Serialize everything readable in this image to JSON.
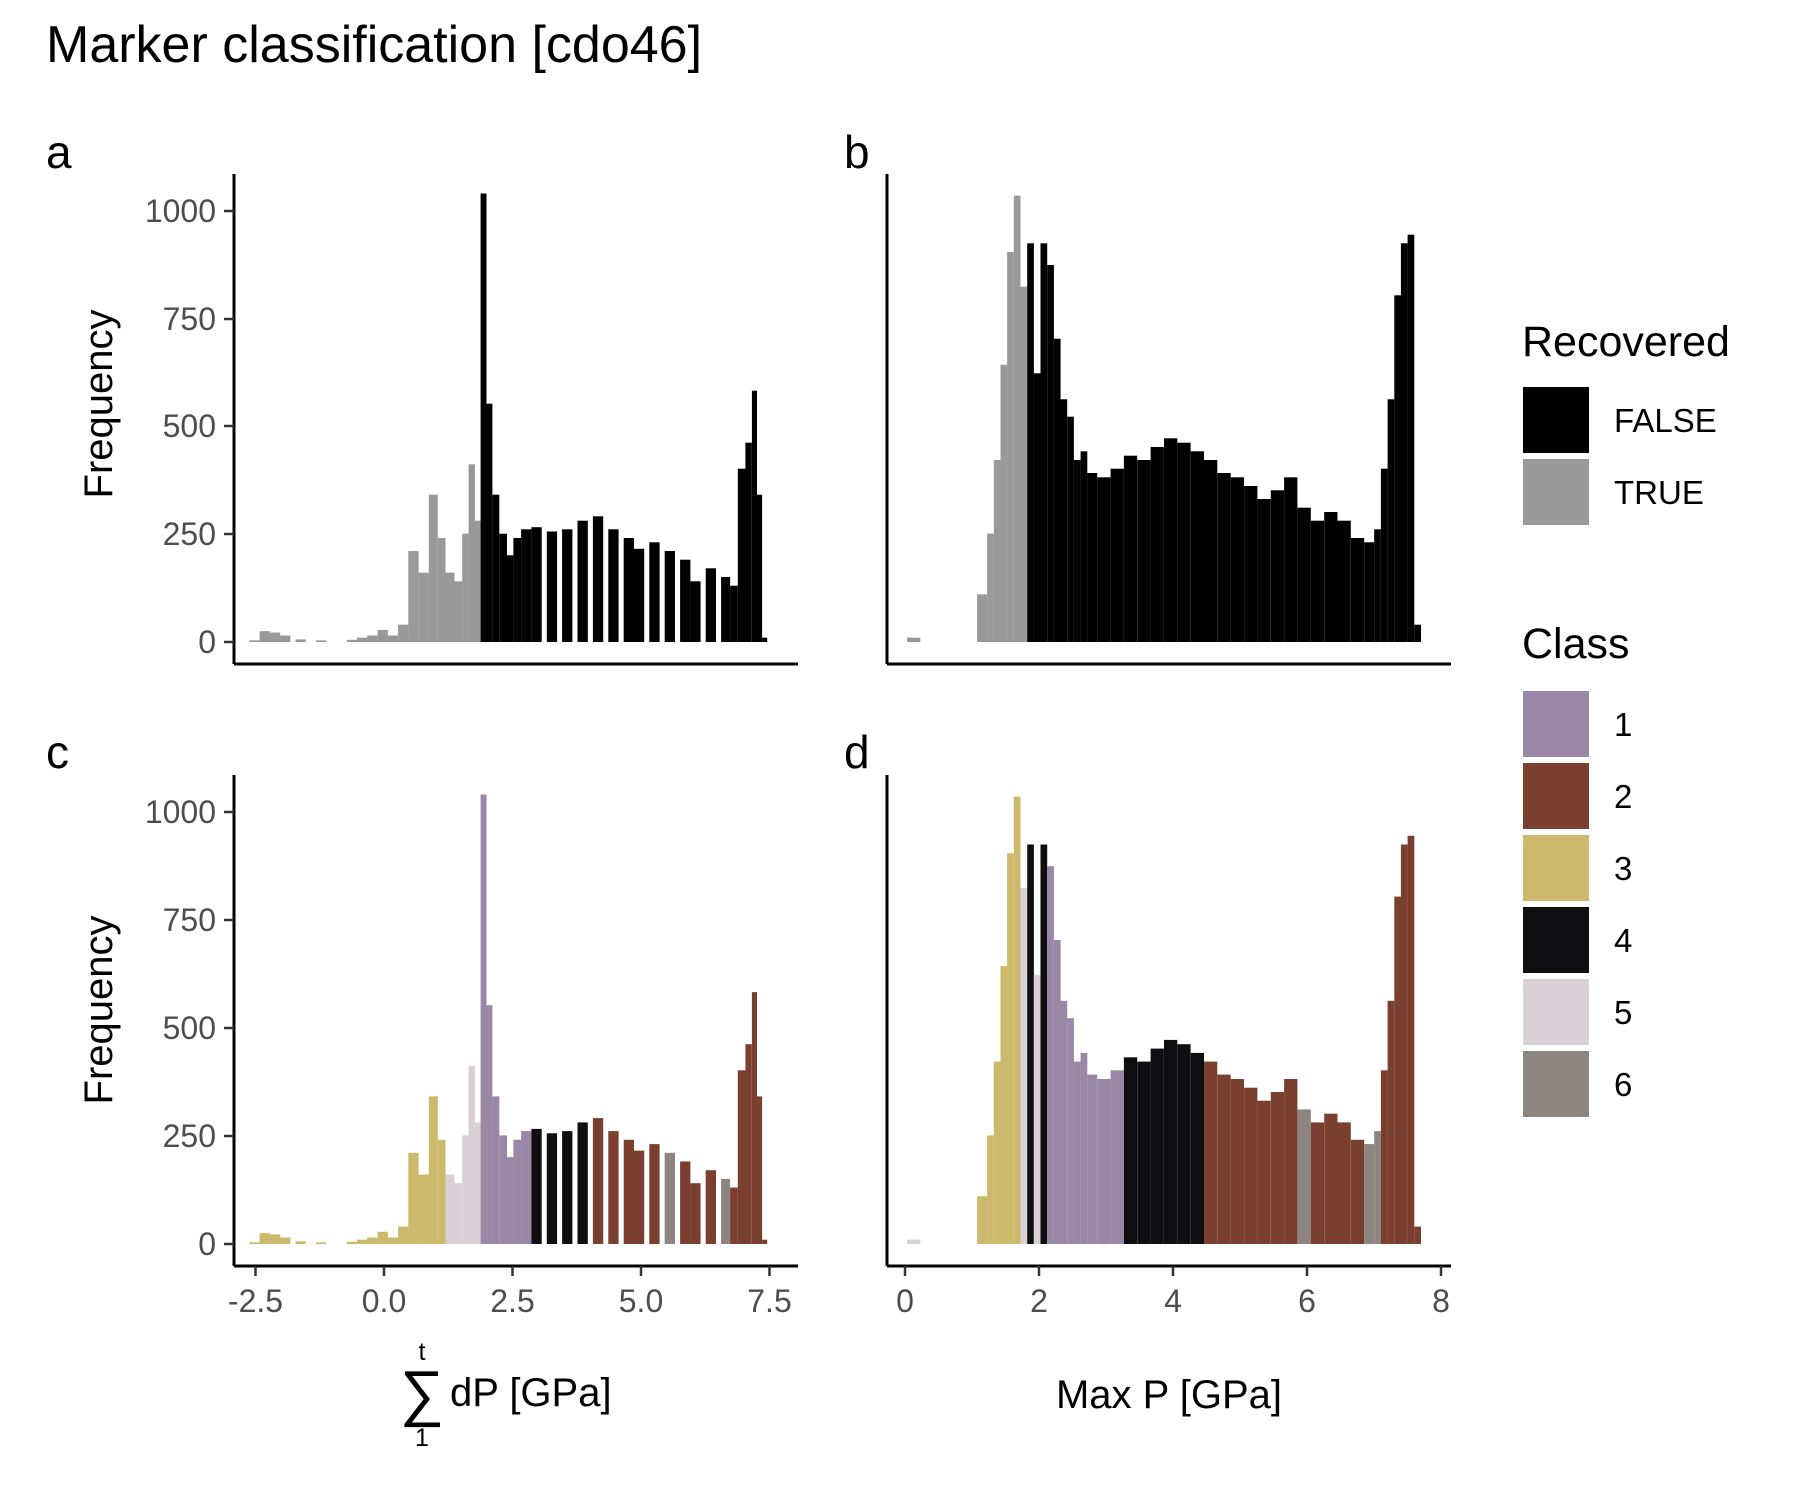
{
  "title": "Marker classification [cdo46]",
  "panels": {
    "a": "a",
    "b": "b",
    "c": "c",
    "d": "d"
  },
  "axes": {
    "ylabel": "Frequency",
    "xlabel_left": "dP [GPa]",
    "xlabel_left_sum_upper": "t",
    "xlabel_left_sum_lower": "1",
    "xlabel_right": "Max P [GPa]",
    "y_ticks": [
      "0",
      "250",
      "500",
      "750",
      "1000"
    ],
    "x_ticks_left": [
      "-2.5",
      "0.0",
      "2.5",
      "5.0",
      "7.5"
    ],
    "x_ticks_right": [
      "0",
      "2",
      "4",
      "6",
      "8"
    ]
  },
  "legend": {
    "recovered_title": "Recovered",
    "recovered": [
      {
        "label": "FALSE",
        "color": "#000000"
      },
      {
        "label": "TRUE",
        "color": "#999999"
      }
    ],
    "class_title": "Class",
    "classes": [
      {
        "label": "1",
        "color": "#9A87A6"
      },
      {
        "label": "2",
        "color": "#7B3F2F"
      },
      {
        "label": "3",
        "color": "#CDB96C"
      },
      {
        "label": "4",
        "color": "#0F0E10"
      },
      {
        "label": "5",
        "color": "#D8D0D4"
      },
      {
        "label": "6",
        "color": "#8C8580"
      }
    ]
  },
  "chart_data": [
    {
      "panel": "a",
      "type": "histogram",
      "stacked": true,
      "fill_by": "Recovered",
      "xlabel": "dP [GPa]",
      "ylabel": "Frequency",
      "xlim": [
        -2.9,
        8.1
      ],
      "ylim": [
        0,
        1080
      ],
      "points": [
        [
          -2.5,
          4,
          "TRUE"
        ],
        [
          -2.3,
          25,
          "TRUE"
        ],
        [
          -2.1,
          22,
          "TRUE"
        ],
        [
          -1.9,
          15,
          "TRUE"
        ],
        [
          -1.6,
          6,
          "TRUE"
        ],
        [
          -1.2,
          4,
          "TRUE"
        ],
        [
          -0.6,
          5,
          "TRUE"
        ],
        [
          -0.4,
          10,
          "TRUE"
        ],
        [
          -0.2,
          15,
          "TRUE"
        ],
        [
          0.0,
          28,
          "TRUE"
        ],
        [
          0.2,
          15,
          "TRUE"
        ],
        [
          0.4,
          40,
          "TRUE"
        ],
        [
          0.6,
          210,
          "TRUE"
        ],
        [
          0.8,
          160,
          "TRUE"
        ],
        [
          1.0,
          340,
          "TRUE"
        ],
        [
          1.15,
          240,
          "TRUE"
        ],
        [
          1.3,
          160,
          "TRUE"
        ],
        [
          1.5,
          140,
          "TRUE"
        ],
        [
          1.6,
          250,
          "TRUE"
        ],
        [
          1.75,
          410,
          "TRUE"
        ],
        [
          1.85,
          280,
          "TRUE"
        ],
        [
          1.97,
          1035,
          "FALSE"
        ],
        [
          2.08,
          550,
          "FALSE"
        ],
        [
          2.2,
          340,
          "FALSE"
        ],
        [
          2.35,
          250,
          "FALSE"
        ],
        [
          2.5,
          200,
          "FALSE"
        ],
        [
          2.6,
          240,
          "FALSE"
        ],
        [
          2.8,
          260,
          "FALSE"
        ],
        [
          3.0,
          265,
          "FALSE"
        ],
        [
          3.3,
          255,
          "FALSE"
        ],
        [
          3.6,
          260,
          "FALSE"
        ],
        [
          3.9,
          280,
          "FALSE"
        ],
        [
          4.2,
          290,
          "FALSE"
        ],
        [
          4.5,
          260,
          "FALSE"
        ],
        [
          4.8,
          240,
          "FALSE"
        ],
        [
          5.0,
          215,
          "FALSE"
        ],
        [
          5.3,
          230,
          "FALSE"
        ],
        [
          5.6,
          210,
          "FALSE"
        ],
        [
          5.9,
          190,
          "FALSE"
        ],
        [
          6.1,
          140,
          "FALSE"
        ],
        [
          6.4,
          170,
          "FALSE"
        ],
        [
          6.7,
          150,
          "FALSE"
        ],
        [
          6.85,
          130,
          "FALSE"
        ],
        [
          7.0,
          400,
          "FALSE"
        ],
        [
          7.15,
          460,
          "FALSE"
        ],
        [
          7.25,
          580,
          "FALSE"
        ],
        [
          7.35,
          340,
          "FALSE"
        ],
        [
          7.45,
          10,
          "FALSE"
        ]
      ]
    },
    {
      "panel": "b",
      "type": "histogram",
      "stacked": true,
      "fill_by": "Recovered",
      "xlabel": "Max P [GPa]",
      "ylabel": "Frequency",
      "xlim": [
        -0.25,
        8.2
      ],
      "ylim": [
        0,
        1080
      ],
      "points": [
        [
          0.15,
          10,
          "TRUE"
        ],
        [
          1.2,
          110,
          "TRUE"
        ],
        [
          1.3,
          250,
          "TRUE"
        ],
        [
          1.4,
          420,
          "TRUE"
        ],
        [
          1.5,
          640,
          "TRUE"
        ],
        [
          1.6,
          900,
          "TRUE"
        ],
        [
          1.7,
          1030,
          "TRUE"
        ],
        [
          1.8,
          820,
          "TRUE"
        ],
        [
          1.9,
          920,
          "FALSE"
        ],
        [
          2.0,
          620,
          "FALSE"
        ],
        [
          2.1,
          920,
          "FALSE"
        ],
        [
          2.2,
          870,
          "FALSE"
        ],
        [
          2.3,
          700,
          "FALSE"
        ],
        [
          2.4,
          560,
          "FALSE"
        ],
        [
          2.5,
          520,
          "FALSE"
        ],
        [
          2.6,
          420,
          "FALSE"
        ],
        [
          2.7,
          440,
          "FALSE"
        ],
        [
          2.8,
          390,
          "FALSE"
        ],
        [
          3.0,
          380,
          "FALSE"
        ],
        [
          3.2,
          400,
          "FALSE"
        ],
        [
          3.4,
          430,
          "FALSE"
        ],
        [
          3.6,
          420,
          "FALSE"
        ],
        [
          3.8,
          450,
          "FALSE"
        ],
        [
          4.0,
          470,
          "FALSE"
        ],
        [
          4.2,
          460,
          "FALSE"
        ],
        [
          4.4,
          440,
          "FALSE"
        ],
        [
          4.6,
          420,
          "FALSE"
        ],
        [
          4.8,
          390,
          "FALSE"
        ],
        [
          5.0,
          380,
          "FALSE"
        ],
        [
          5.2,
          360,
          "FALSE"
        ],
        [
          5.4,
          330,
          "FALSE"
        ],
        [
          5.6,
          350,
          "FALSE"
        ],
        [
          5.8,
          380,
          "FALSE"
        ],
        [
          6.0,
          310,
          "FALSE"
        ],
        [
          6.2,
          280,
          "FALSE"
        ],
        [
          6.4,
          300,
          "FALSE"
        ],
        [
          6.6,
          280,
          "FALSE"
        ],
        [
          6.8,
          240,
          "FALSE"
        ],
        [
          7.0,
          230,
          "FALSE"
        ],
        [
          7.1,
          260,
          "FALSE"
        ],
        [
          7.2,
          400,
          "FALSE"
        ],
        [
          7.3,
          560,
          "FALSE"
        ],
        [
          7.4,
          800,
          "FALSE"
        ],
        [
          7.5,
          920,
          "FALSE"
        ],
        [
          7.6,
          940,
          "FALSE"
        ],
        [
          7.7,
          40,
          "FALSE"
        ]
      ]
    },
    {
      "panel": "c",
      "type": "histogram",
      "stacked": true,
      "fill_by": "Class",
      "xlabel": "dP [GPa]",
      "ylabel": "Frequency",
      "xlim": [
        -2.9,
        8.1
      ],
      "ylim": [
        0,
        1080
      ],
      "points": [
        [
          -2.5,
          4,
          "3"
        ],
        [
          -2.3,
          25,
          "3"
        ],
        [
          -2.1,
          22,
          "3"
        ],
        [
          -1.9,
          15,
          "3"
        ],
        [
          -1.6,
          6,
          "3"
        ],
        [
          -1.2,
          4,
          "3"
        ],
        [
          -0.6,
          5,
          "3"
        ],
        [
          -0.4,
          10,
          "3"
        ],
        [
          -0.2,
          15,
          "3"
        ],
        [
          0.0,
          28,
          "3"
        ],
        [
          0.2,
          15,
          "3"
        ],
        [
          0.4,
          40,
          "3"
        ],
        [
          0.6,
          210,
          "3"
        ],
        [
          0.8,
          160,
          "3"
        ],
        [
          1.0,
          340,
          "3"
        ],
        [
          1.15,
          240,
          "3"
        ],
        [
          1.3,
          160,
          "5"
        ],
        [
          1.5,
          140,
          "5"
        ],
        [
          1.6,
          250,
          "5"
        ],
        [
          1.75,
          410,
          "5"
        ],
        [
          1.85,
          280,
          "5"
        ],
        [
          1.97,
          1035,
          "1"
        ],
        [
          2.08,
          550,
          "1"
        ],
        [
          2.2,
          340,
          "1"
        ],
        [
          2.35,
          250,
          "1"
        ],
        [
          2.5,
          200,
          "1"
        ],
        [
          2.6,
          240,
          "1"
        ],
        [
          2.8,
          260,
          "1"
        ],
        [
          3.0,
          265,
          "4"
        ],
        [
          3.3,
          255,
          "4"
        ],
        [
          3.6,
          260,
          "4"
        ],
        [
          3.9,
          280,
          "4"
        ],
        [
          4.2,
          290,
          "2"
        ],
        [
          4.5,
          260,
          "2"
        ],
        [
          4.8,
          240,
          "2"
        ],
        [
          5.0,
          215,
          "2"
        ],
        [
          5.3,
          230,
          "2"
        ],
        [
          5.6,
          210,
          "6"
        ],
        [
          5.9,
          190,
          "2"
        ],
        [
          6.1,
          140,
          "2"
        ],
        [
          6.4,
          170,
          "2"
        ],
        [
          6.7,
          150,
          "6"
        ],
        [
          6.85,
          130,
          "2"
        ],
        [
          7.0,
          400,
          "2"
        ],
        [
          7.15,
          460,
          "2"
        ],
        [
          7.25,
          580,
          "2"
        ],
        [
          7.35,
          340,
          "2"
        ],
        [
          7.45,
          10,
          "2"
        ]
      ]
    },
    {
      "panel": "d",
      "type": "histogram",
      "stacked": true,
      "fill_by": "Class",
      "xlabel": "Max P [GPa]",
      "ylabel": "Frequency",
      "xlim": [
        -0.25,
        8.2
      ],
      "ylim": [
        0,
        1080
      ],
      "points": [
        [
          0.15,
          10,
          "5"
        ],
        [
          1.2,
          110,
          "3"
        ],
        [
          1.3,
          250,
          "3"
        ],
        [
          1.4,
          420,
          "3"
        ],
        [
          1.5,
          640,
          "3"
        ],
        [
          1.6,
          900,
          "3"
        ],
        [
          1.7,
          1030,
          "3"
        ],
        [
          1.8,
          820,
          "5"
        ],
        [
          1.9,
          920,
          "4"
        ],
        [
          2.0,
          620,
          "5"
        ],
        [
          2.1,
          920,
          "4"
        ],
        [
          2.2,
          870,
          "1"
        ],
        [
          2.3,
          700,
          "1"
        ],
        [
          2.4,
          560,
          "1"
        ],
        [
          2.5,
          520,
          "1"
        ],
        [
          2.6,
          420,
          "1"
        ],
        [
          2.7,
          440,
          "1"
        ],
        [
          2.8,
          390,
          "1"
        ],
        [
          3.0,
          380,
          "1"
        ],
        [
          3.2,
          400,
          "1"
        ],
        [
          3.4,
          430,
          "4"
        ],
        [
          3.6,
          420,
          "4"
        ],
        [
          3.8,
          450,
          "4"
        ],
        [
          4.0,
          470,
          "4"
        ],
        [
          4.2,
          460,
          "4"
        ],
        [
          4.4,
          440,
          "4"
        ],
        [
          4.6,
          420,
          "2"
        ],
        [
          4.8,
          390,
          "2"
        ],
        [
          5.0,
          380,
          "2"
        ],
        [
          5.2,
          360,
          "2"
        ],
        [
          5.4,
          330,
          "2"
        ],
        [
          5.6,
          350,
          "2"
        ],
        [
          5.8,
          380,
          "2"
        ],
        [
          6.0,
          310,
          "6"
        ],
        [
          6.2,
          280,
          "2"
        ],
        [
          6.4,
          300,
          "2"
        ],
        [
          6.6,
          280,
          "2"
        ],
        [
          6.8,
          240,
          "2"
        ],
        [
          7.0,
          230,
          "6"
        ],
        [
          7.1,
          260,
          "6"
        ],
        [
          7.2,
          400,
          "2"
        ],
        [
          7.3,
          560,
          "2"
        ],
        [
          7.4,
          800,
          "2"
        ],
        [
          7.5,
          920,
          "2"
        ],
        [
          7.6,
          940,
          "2"
        ],
        [
          7.7,
          40,
          "2"
        ]
      ]
    }
  ]
}
